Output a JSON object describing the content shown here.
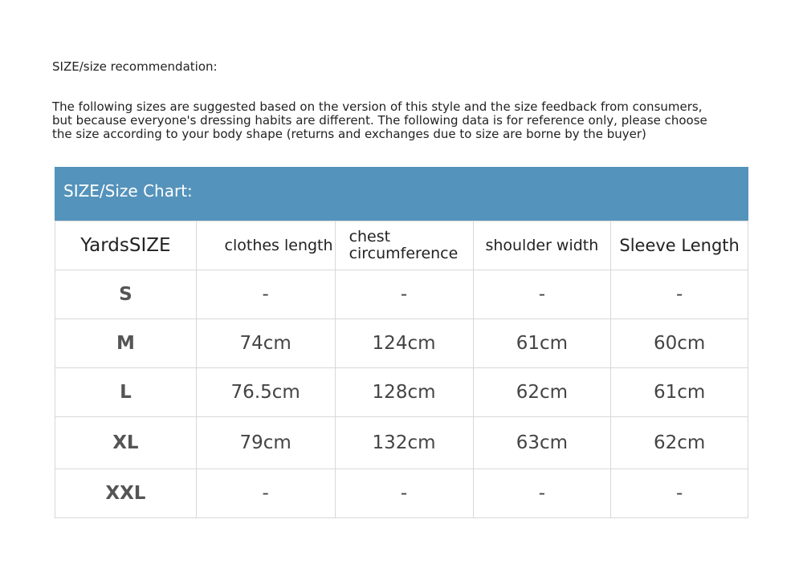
{
  "title": "SIZE/size recommendation:",
  "intro": [
    "The following sizes are suggested based on the version of this style and the size feedback from consumers,",
    "but because everyone's dressing habits are different. The following data is for reference only, please choose",
    "the size according to your body shape (returns and exchanges due to size are borne by the buyer)"
  ],
  "banner": {
    "label": "SIZE/Size Chart:",
    "color": "#5493bb"
  },
  "headers": [
    "YardsSIZE",
    "clothes length",
    "chest circumference",
    "shoulder width",
    "Sleeve Length"
  ],
  "rows": [
    [
      "S",
      "-",
      "-",
      "-",
      "-"
    ],
    [
      "M",
      "74cm",
      "124cm",
      "61cm",
      "60cm"
    ],
    [
      "L",
      "76.5cm",
      "128cm",
      "62cm",
      "61cm"
    ],
    [
      "XL",
      "79cm",
      "132cm",
      "63cm",
      "62cm"
    ],
    [
      "XXL",
      "-",
      "-",
      "-",
      "-"
    ]
  ]
}
